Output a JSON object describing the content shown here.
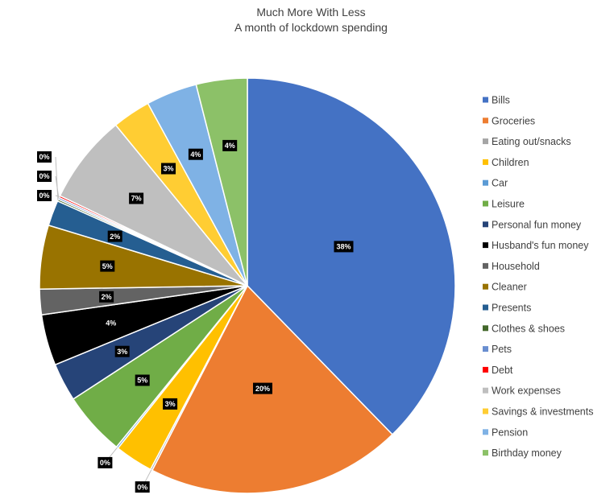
{
  "chart_data": {
    "type": "pie",
    "title": "Much More With Less",
    "subtitle": "A month of lockdown spending",
    "legend_position": "right",
    "slices": [
      {
        "label": "Bills",
        "value": 38,
        "data_label": "38%",
        "color": "#4472C4"
      },
      {
        "label": "Groceries",
        "value": 20,
        "data_label": "20%",
        "color": "#ED7D31"
      },
      {
        "label": "Eating out/snacks",
        "value": 0,
        "data_label": "0%",
        "color": "#A5A5A5"
      },
      {
        "label": "Children",
        "value": 3,
        "data_label": "3%",
        "color": "#FFC000"
      },
      {
        "label": "Car",
        "value": 0,
        "data_label": "0%",
        "color": "#5B9BD5"
      },
      {
        "label": "Leisure",
        "value": 5,
        "data_label": "5%",
        "color": "#70AD47"
      },
      {
        "label": "Personal fun money",
        "value": 3,
        "data_label": "3%",
        "color": "#264478"
      },
      {
        "label": "Husband's fun money",
        "value": 4,
        "data_label": "4%",
        "color": "#000000"
      },
      {
        "label": "Household",
        "value": 2,
        "data_label": "2%",
        "color": "#636363"
      },
      {
        "label": "Cleaner",
        "value": 5,
        "data_label": "5%",
        "color": "#997300"
      },
      {
        "label": "Presents",
        "value": 2,
        "data_label": "2%",
        "color": "#255E91"
      },
      {
        "label": "Clothes & shoes",
        "value": 0,
        "data_label": "0%",
        "color": "#43682B"
      },
      {
        "label": "Pets",
        "value": 0,
        "data_label": "0%",
        "color": "#698ED0"
      },
      {
        "label": "Debt",
        "value": 0,
        "data_label": "0%",
        "color": "#FF0000"
      },
      {
        "label": "Work expenses",
        "value": 7,
        "data_label": "7%",
        "color": "#BFBFBF"
      },
      {
        "label": "Savings & investments",
        "value": 3,
        "data_label": "3%",
        "color": "#FFCD33"
      },
      {
        "label": "Pension",
        "value": 4,
        "data_label": "4%",
        "color": "#7FB2E5"
      },
      {
        "label": "Birthday money",
        "value": 4,
        "data_label": "4%",
        "color": "#8CC168"
      }
    ]
  }
}
